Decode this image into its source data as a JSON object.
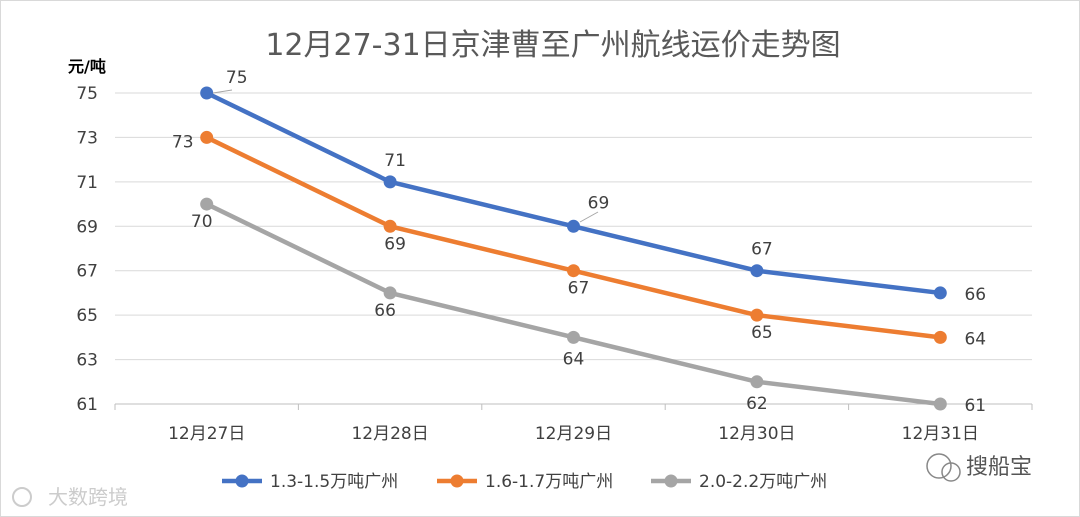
{
  "chart_data": {
    "type": "line",
    "title": "12月27-31日京津曹至广州航线运价走势图",
    "ylabel": "元/吨",
    "xlabel": "",
    "categories": [
      "12月27日",
      "12月28日",
      "12月29日",
      "12月30日",
      "12月31日"
    ],
    "ylim": [
      61,
      75
    ],
    "yticks": [
      61,
      63,
      65,
      67,
      69,
      71,
      73,
      75
    ],
    "grid": true,
    "legend_position": "bottom",
    "series": [
      {
        "name": "1.3-1.5万吨广州",
        "color": "#4472c4",
        "values": [
          75,
          71,
          69,
          67,
          66
        ]
      },
      {
        "name": "1.6-1.7万吨广州",
        "color": "#ed7d31",
        "values": [
          73,
          69,
          67,
          65,
          64
        ]
      },
      {
        "name": "2.0-2.2万吨广州",
        "color": "#a5a5a5",
        "values": [
          70,
          66,
          64,
          62,
          61
        ]
      }
    ]
  },
  "watermarks": {
    "left": "大数跨境",
    "right": "搜船宝"
  }
}
